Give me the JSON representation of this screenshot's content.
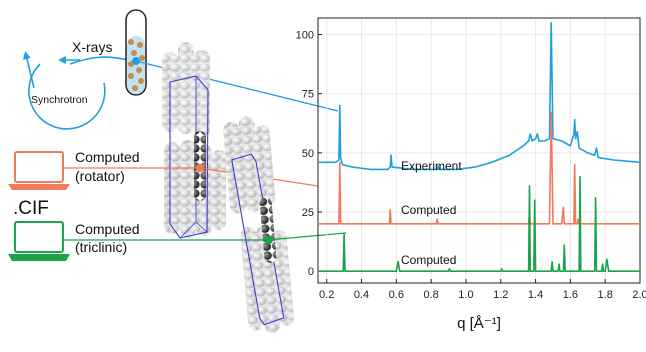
{
  "labels": {
    "xrays": "X-rays",
    "synchrotron": "Synchrotron",
    "computed_rotator_l1": "Computed",
    "computed_rotator_l2": "(rotator)",
    "cif": ".CIF",
    "computed_triclinic_l1": "Computed",
    "computed_triclinic_l2": "(triclinic)"
  },
  "colors": {
    "experiment": "#1f9fe0",
    "rotator": "#f07b5a",
    "triclinic": "#1aa34a",
    "molecule_cell": "#3b3bd6"
  },
  "chart_data": {
    "type": "line",
    "xlabel": "q [Å⁻¹]",
    "ylabel": "",
    "xlim": [
      0.15,
      2.0
    ],
    "ylim": [
      -5,
      107
    ],
    "grid": true,
    "xticks": [
      "0.2",
      "0.4",
      "0.6",
      "0.8",
      "1.0",
      "1.2",
      "1.4",
      "1.6",
      "1.8",
      "2.0"
    ],
    "yticks": [
      "0",
      "25",
      "50",
      "75",
      "100"
    ],
    "series": [
      {
        "name": "Experiment",
        "color": "#1f9fe0",
        "baseline": 47,
        "points": [
          [
            0.15,
            46
          ],
          [
            0.25,
            46
          ],
          [
            0.27,
            47
          ],
          [
            0.275,
            70
          ],
          [
            0.28,
            48
          ],
          [
            0.29,
            45
          ],
          [
            0.35,
            44
          ],
          [
            0.45,
            43
          ],
          [
            0.55,
            43
          ],
          [
            0.565,
            44
          ],
          [
            0.57,
            49
          ],
          [
            0.575,
            44
          ],
          [
            0.7,
            43
          ],
          [
            0.8,
            43
          ],
          [
            0.835,
            43
          ],
          [
            0.84,
            44.5
          ],
          [
            0.845,
            43
          ],
          [
            0.95,
            43
          ],
          [
            1.05,
            44
          ],
          [
            1.15,
            46
          ],
          [
            1.25,
            49
          ],
          [
            1.33,
            53
          ],
          [
            1.36,
            55
          ],
          [
            1.37,
            58
          ],
          [
            1.38,
            55
          ],
          [
            1.4,
            56
          ],
          [
            1.41,
            58
          ],
          [
            1.42,
            55
          ],
          [
            1.45,
            55
          ],
          [
            1.48,
            56
          ],
          [
            1.49,
            105
          ],
          [
            1.5,
            56
          ],
          [
            1.55,
            55
          ],
          [
            1.6,
            53
          ],
          [
            1.62,
            58
          ],
          [
            1.625,
            64
          ],
          [
            1.63,
            56
          ],
          [
            1.64,
            59
          ],
          [
            1.65,
            52
          ],
          [
            1.7,
            50
          ],
          [
            1.74,
            49
          ],
          [
            1.75,
            52
          ],
          [
            1.76,
            48
          ],
          [
            1.85,
            47
          ],
          [
            2.0,
            46
          ]
        ]
      },
      {
        "name": "Computed",
        "color": "#f07b5a",
        "baseline": 20,
        "points": [
          [
            0.15,
            20
          ],
          [
            0.27,
            20
          ],
          [
            0.275,
            46
          ],
          [
            0.28,
            20
          ],
          [
            0.56,
            20
          ],
          [
            0.565,
            26
          ],
          [
            0.57,
            20
          ],
          [
            0.83,
            20
          ],
          [
            0.835,
            22
          ],
          [
            0.84,
            20
          ],
          [
            1.36,
            20
          ],
          [
            1.365,
            24
          ],
          [
            1.37,
            20
          ],
          [
            1.48,
            20
          ],
          [
            1.49,
            67
          ],
          [
            1.5,
            20
          ],
          [
            1.55,
            20
          ],
          [
            1.56,
            27
          ],
          [
            1.565,
            20
          ],
          [
            1.62,
            20
          ],
          [
            1.625,
            45
          ],
          [
            1.63,
            20
          ],
          [
            1.64,
            20
          ],
          [
            1.645,
            22
          ],
          [
            1.65,
            20
          ],
          [
            2.0,
            20
          ]
        ]
      },
      {
        "name": "Computed",
        "color": "#1aa34a",
        "baseline": 0,
        "points": [
          [
            0.15,
            0
          ],
          [
            0.295,
            0
          ],
          [
            0.3,
            16
          ],
          [
            0.305,
            0
          ],
          [
            0.6,
            0
          ],
          [
            0.61,
            4
          ],
          [
            0.62,
            0
          ],
          [
            0.9,
            0
          ],
          [
            0.905,
            1
          ],
          [
            0.91,
            0
          ],
          [
            1.2,
            0
          ],
          [
            1.205,
            1
          ],
          [
            1.21,
            0
          ],
          [
            1.36,
            0
          ],
          [
            1.365,
            36
          ],
          [
            1.37,
            0
          ],
          [
            1.39,
            0
          ],
          [
            1.395,
            30
          ],
          [
            1.4,
            0
          ],
          [
            1.49,
            0
          ],
          [
            1.495,
            4
          ],
          [
            1.5,
            0
          ],
          [
            1.53,
            0
          ],
          [
            1.535,
            3
          ],
          [
            1.54,
            0
          ],
          [
            1.56,
            0
          ],
          [
            1.565,
            11
          ],
          [
            1.57,
            0
          ],
          [
            1.65,
            0
          ],
          [
            1.655,
            40
          ],
          [
            1.66,
            0
          ],
          [
            1.74,
            0
          ],
          [
            1.745,
            31
          ],
          [
            1.75,
            0
          ],
          [
            1.78,
            0
          ],
          [
            1.785,
            3
          ],
          [
            1.79,
            0
          ],
          [
            1.8,
            0
          ],
          [
            1.81,
            5
          ],
          [
            1.82,
            0
          ],
          [
            2.0,
            0
          ]
        ]
      }
    ]
  }
}
